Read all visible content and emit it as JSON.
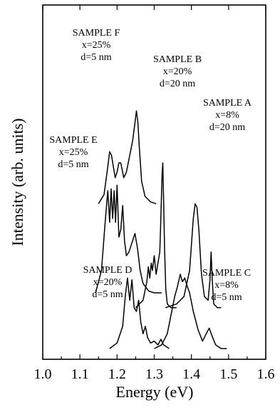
{
  "chart_data": {
    "type": "line",
    "xlabel": "Energy (eV)",
    "ylabel": "Intensity (arb. units)",
    "xlim": [
      1.0,
      1.6
    ],
    "x_ticks": [
      "1.0",
      "1.1",
      "1.2",
      "1.3",
      "1.4",
      "1.5",
      "1.6"
    ],
    "y_ticks": "none",
    "grid": false,
    "series": [
      {
        "name": "SAMPLE F",
        "annotation": [
          "SAMPLE F",
          "x=25%",
          "d=5 nm"
        ],
        "offset": 0.78,
        "x": [
          1.15,
          1.165,
          1.175,
          1.18,
          1.185,
          1.195,
          1.2,
          1.205,
          1.21,
          1.218,
          1.225,
          1.235,
          1.242,
          1.247,
          1.252,
          1.256,
          1.26,
          1.266,
          1.275,
          1.29,
          1.305
        ],
        "y": [
          0.0,
          0.05,
          0.2,
          0.28,
          0.26,
          0.14,
          0.17,
          0.22,
          0.22,
          0.14,
          0.17,
          0.27,
          0.34,
          0.42,
          0.5,
          0.44,
          0.3,
          0.12,
          0.04,
          0.01,
          0.0
        ]
      },
      {
        "name": "SAMPLE E",
        "annotation": [
          "SAMPLE E",
          "x=25%",
          "d=5 nm"
        ],
        "offset": 0.3,
        "x": [
          1.142,
          1.158,
          1.168,
          1.175,
          1.18,
          1.184,
          1.188,
          1.192,
          1.196,
          1.2,
          1.205,
          1.21,
          1.215,
          1.22,
          1.225,
          1.232,
          1.24,
          1.248,
          1.255,
          1.262,
          1.27,
          1.285,
          1.3,
          1.32
        ],
        "y": [
          0.0,
          0.12,
          0.38,
          0.55,
          0.38,
          0.56,
          0.4,
          0.55,
          0.38,
          0.58,
          0.3,
          0.34,
          0.47,
          0.28,
          0.2,
          0.22,
          0.27,
          0.32,
          0.24,
          0.12,
          0.05,
          0.01,
          0.0,
          0.0
        ]
      },
      {
        "name": "SAMPLE B",
        "annotation": [
          "SAMPLE B",
          "x=20%",
          "d=20 nm"
        ],
        "offset": 0.22,
        "x": [
          1.25,
          1.27,
          1.28,
          1.284,
          1.288,
          1.292,
          1.295,
          1.3,
          1.305,
          1.31,
          1.315,
          1.318,
          1.321,
          1.323,
          1.325,
          1.328,
          1.331,
          1.335,
          1.345,
          1.36
        ],
        "y": [
          0.0,
          0.04,
          0.14,
          0.22,
          0.16,
          0.24,
          0.2,
          0.28,
          0.18,
          0.24,
          0.3,
          0.5,
          0.72,
          0.78,
          0.6,
          0.3,
          0.1,
          0.02,
          0.0,
          0.0
        ]
      },
      {
        "name": "SAMPLE A",
        "annotation": [
          "SAMPLE A",
          "x=8%",
          "d=20 nm"
        ],
        "offset": 0.22,
        "x": [
          1.33,
          1.36,
          1.38,
          1.395,
          1.405,
          1.41,
          1.415,
          1.42,
          1.427,
          1.435,
          1.445,
          1.45,
          1.453,
          1.456,
          1.46,
          1.47,
          1.48
        ],
        "y": [
          0.0,
          0.02,
          0.06,
          0.2,
          0.48,
          0.56,
          0.54,
          0.42,
          0.18,
          0.06,
          0.04,
          0.15,
          0.3,
          0.15,
          0.02,
          0.0,
          0.0
        ]
      },
      {
        "name": "SAMPLE D",
        "annotation": [
          "SAMPLE D",
          "x=20%",
          "d=5 nm"
        ],
        "offset": 0.0,
        "x": [
          1.18,
          1.2,
          1.215,
          1.222,
          1.228,
          1.234,
          1.24,
          1.246,
          1.252,
          1.258,
          1.264,
          1.27,
          1.276,
          1.282,
          1.29,
          1.3,
          1.31,
          1.318,
          1.325,
          1.34
        ],
        "y": [
          0.0,
          0.03,
          0.12,
          0.28,
          0.38,
          0.26,
          0.37,
          0.22,
          0.2,
          0.26,
          0.14,
          0.08,
          0.12,
          0.06,
          0.03,
          0.04,
          0.02,
          0.05,
          0.02,
          0.0
        ]
      },
      {
        "name": "SAMPLE C",
        "annotation": [
          "SAMPLE C",
          "x=8%",
          "d=5 nm"
        ],
        "offset": 0.0,
        "x": [
          1.3,
          1.32,
          1.335,
          1.345,
          1.355,
          1.362,
          1.37,
          1.376,
          1.382,
          1.388,
          1.395,
          1.405,
          1.418,
          1.43,
          1.44,
          1.448,
          1.455,
          1.465,
          1.48,
          1.495
        ],
        "y": [
          0.0,
          0.02,
          0.08,
          0.18,
          0.28,
          0.33,
          0.4,
          0.36,
          0.38,
          0.34,
          0.3,
          0.2,
          0.1,
          0.04,
          0.08,
          0.11,
          0.07,
          0.02,
          0.0,
          0.0
        ]
      }
    ]
  }
}
